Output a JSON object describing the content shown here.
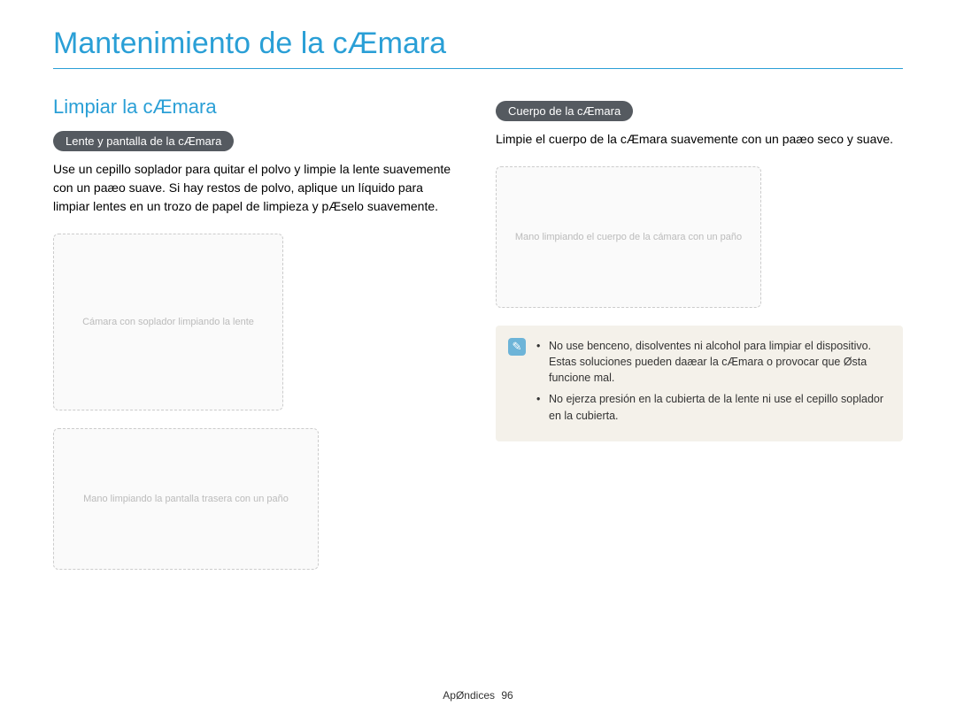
{
  "colors": {
    "accent": "#2a9fd6",
    "underline": "#2a9fd6",
    "pill_bg": "#555a60",
    "pill_text": "#ffffff",
    "body_text": "#000000",
    "note_bg": "#f4f1ea",
    "note_icon_bg": "#6db4d8",
    "note_text": "#333333",
    "background": "#ffffff"
  },
  "typography": {
    "title_size": 34,
    "section_size": 22,
    "pill_size": 13,
    "body_size": 14,
    "note_size": 12.5,
    "footer_size": 12
  },
  "title": "Mantenimiento de la cÆmara",
  "left": {
    "section_title": "Limpiar la cÆmara",
    "pill_label": "Lente y pantalla de la cÆmara",
    "paragraph": "Use un cepillo soplador para quitar el polvo y limpie la lente suavemente con un paæo suave. Si hay restos de polvo, aplique un líquido para limpiar lentes en un trozo de papel de limpieza y pÆselo suavemente.",
    "illus1_alt": "Cámara con soplador limpiando la lente",
    "illus2_alt": "Mano limpiando la pantalla trasera con un paño"
  },
  "right": {
    "pill_label": "Cuerpo de la cÆmara",
    "paragraph": "Limpie el cuerpo de la cÆmara suavemente con un paæo seco y suave.",
    "illus_alt": "Mano limpiando el cuerpo de la cámara con un paño",
    "note_icon": "✎",
    "notes": [
      "No use benceno, disolventes ni alcohol para limpiar el dispositivo. Estas soluciones pueden daæar la cÆmara o provocar que Østa funcione mal.",
      "No ejerza presión en la cubierta de la lente ni use el cepillo soplador en la cubierta."
    ]
  },
  "footer": {
    "label": "ApØndices",
    "page": "96"
  }
}
